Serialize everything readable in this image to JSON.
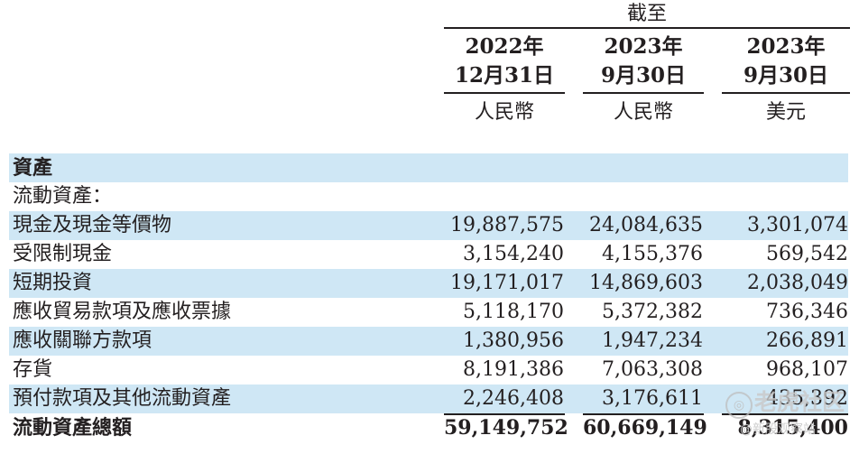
{
  "header": {
    "group_label": "截至",
    "columns": [
      {
        "year": "2022年",
        "date": "12月31日",
        "currency": "人民幣"
      },
      {
        "year": "2023年",
        "date": "9月30日",
        "currency": "人民幣"
      },
      {
        "year": "2023年",
        "date": "9月30日",
        "currency": "美元"
      }
    ]
  },
  "rows": [
    {
      "label": "資產",
      "v1": "",
      "v2": "",
      "v3": ""
    },
    {
      "label": "流動資產：",
      "v1": "",
      "v2": "",
      "v3": ""
    },
    {
      "label": "現金及現金等價物",
      "v1": "19,887,575",
      "v2": "24,084,635",
      "v3": "3,301,074"
    },
    {
      "label": "受限制現金",
      "v1": "3,154,240",
      "v2": "4,155,376",
      "v3": "569,542"
    },
    {
      "label": "短期投資",
      "v1": "19,171,017",
      "v2": "14,869,603",
      "v3": "2,038,049"
    },
    {
      "label": "應收貿易款項及應收票據",
      "v1": "5,118,170",
      "v2": "5,372,382",
      "v3": "736,346"
    },
    {
      "label": "應收關聯方款項",
      "v1": "1,380,956",
      "v2": "1,947,234",
      "v3": "266,891"
    },
    {
      "label": "存貨",
      "v1": "8,191,386",
      "v2": "7,063,308",
      "v3": "968,107"
    },
    {
      "label": "預付款項及其他流動資產",
      "v1": "2,246,408",
      "v2": "3,176,611",
      "v3": "435,392"
    },
    {
      "label": "流動資產總額",
      "v1": "59,149,752",
      "v2": "60,669,149",
      "v3": "8,315,400"
    }
  ],
  "watermark": {
    "line1": "老虎社区",
    "line2": "@新股观察站",
    "icon": "tiger-logo-icon",
    "icon_glyph": "◎"
  },
  "colors": {
    "row_shade": "#cfe7f5",
    "text": "#231f20"
  }
}
